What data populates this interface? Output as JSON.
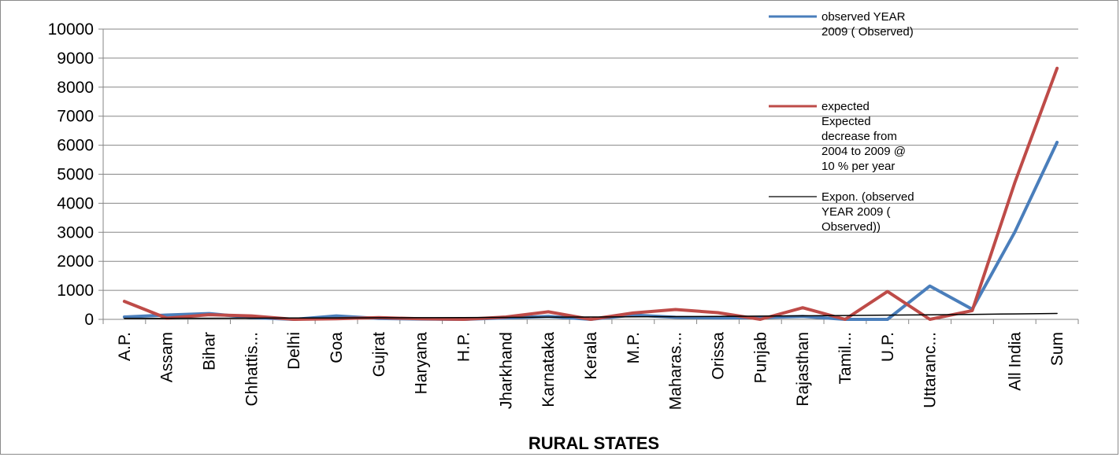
{
  "chart_data": {
    "type": "line",
    "title": "",
    "xlabel": "RURAL STATES",
    "ylabel": "",
    "ylim": [
      0,
      10000
    ],
    "yticks": [
      0,
      1000,
      2000,
      3000,
      4000,
      5000,
      6000,
      7000,
      8000,
      9000,
      10000
    ],
    "grid": true,
    "legend_position": "right",
    "categories": [
      "A.P.",
      "Assam",
      "Bihar",
      "Chhattis...",
      "Delhi",
      "Goa",
      "Gujrat",
      "Haryana",
      "H.P.",
      "Jharkhand",
      "Karnataka",
      "Kerala",
      "M.P.",
      "Maharas...",
      "Orissa",
      "Punjab",
      "Rajasthan",
      "Tamil...",
      "U.P.",
      "Uttaranc...",
      "",
      "All India",
      "Sum"
    ],
    "series": [
      {
        "name_lines": [
          "observed YEAR",
          "2009 ( Observed)"
        ],
        "color": "#4a7ebb",
        "width": 4,
        "values": [
          80,
          150,
          200,
          60,
          0,
          120,
          30,
          10,
          0,
          50,
          100,
          0,
          150,
          70,
          50,
          60,
          100,
          0,
          0,
          1150,
          350,
          3000,
          6100
        ]
      },
      {
        "name_lines": [
          "expected",
          "Expected",
          "decrease from",
          "2004 to 2009 @",
          "10 % per year"
        ],
        "color": "#be4b48",
        "width": 4,
        "values": [
          620,
          40,
          160,
          120,
          0,
          20,
          60,
          20,
          0,
          80,
          260,
          0,
          220,
          340,
          230,
          0,
          400,
          0,
          960,
          0,
          300,
          4700,
          8650
        ]
      },
      {
        "name_lines": [
          "Expon. (observed",
          "YEAR 2009  (",
          "Observed))"
        ],
        "color": "#000000",
        "width": 1.5,
        "values": [
          32,
          35,
          38,
          41,
          45,
          49,
          53,
          58,
          63,
          68,
          74,
          80,
          87,
          95,
          103,
          112,
          122,
          133,
          145,
          157,
          171,
          186,
          203
        ]
      }
    ]
  }
}
